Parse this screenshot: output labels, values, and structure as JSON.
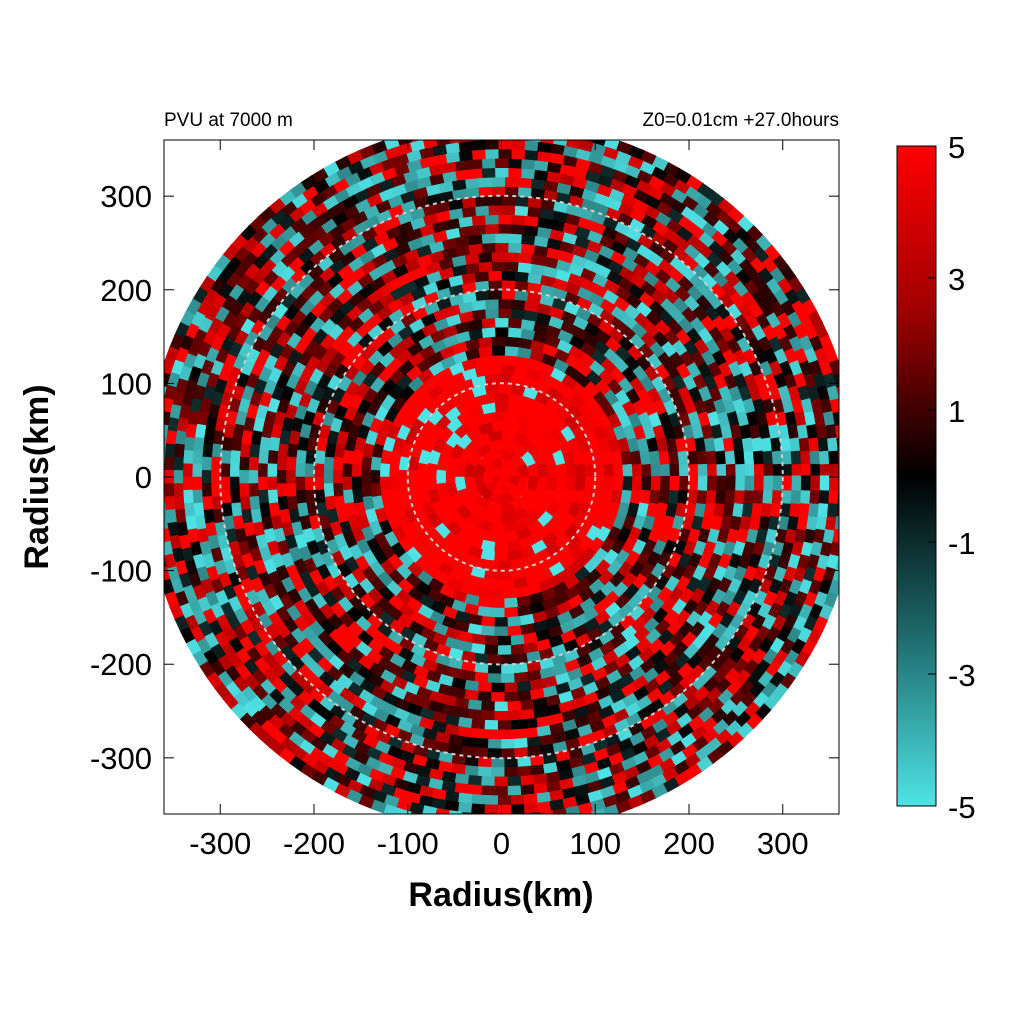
{
  "chart_data": {
    "type": "heatmap",
    "title_left": "PVU at  7000 m",
    "title_right": "Z0=0.01cm  +27.0hours",
    "xlabel": "Radius(km)",
    "ylabel": "Radius(km)",
    "xlim": [
      -360,
      360
    ],
    "ylim": [
      -360,
      360
    ],
    "x_ticks": [
      -300,
      -200,
      -100,
      0,
      100,
      200,
      300
    ],
    "y_ticks": [
      -300,
      -200,
      -100,
      0,
      100,
      200,
      300
    ],
    "domain_radius_km": 380,
    "reference_circles_km": [
      100,
      200,
      300
    ],
    "colorbar": {
      "min": -5,
      "max": 5,
      "ticks": [
        "5",
        "3",
        "1",
        "-1",
        "-3",
        "-5"
      ],
      "tick_values": [
        5,
        3,
        1,
        -1,
        -3,
        -5
      ],
      "colors": {
        "high": "#ff0000",
        "mid": "#000000",
        "low": "#4fe3e6"
      }
    },
    "field_description_values": {
      "core_radius_km": 130,
      "core_value": 5,
      "ring_mean_value": 1.2
    }
  }
}
